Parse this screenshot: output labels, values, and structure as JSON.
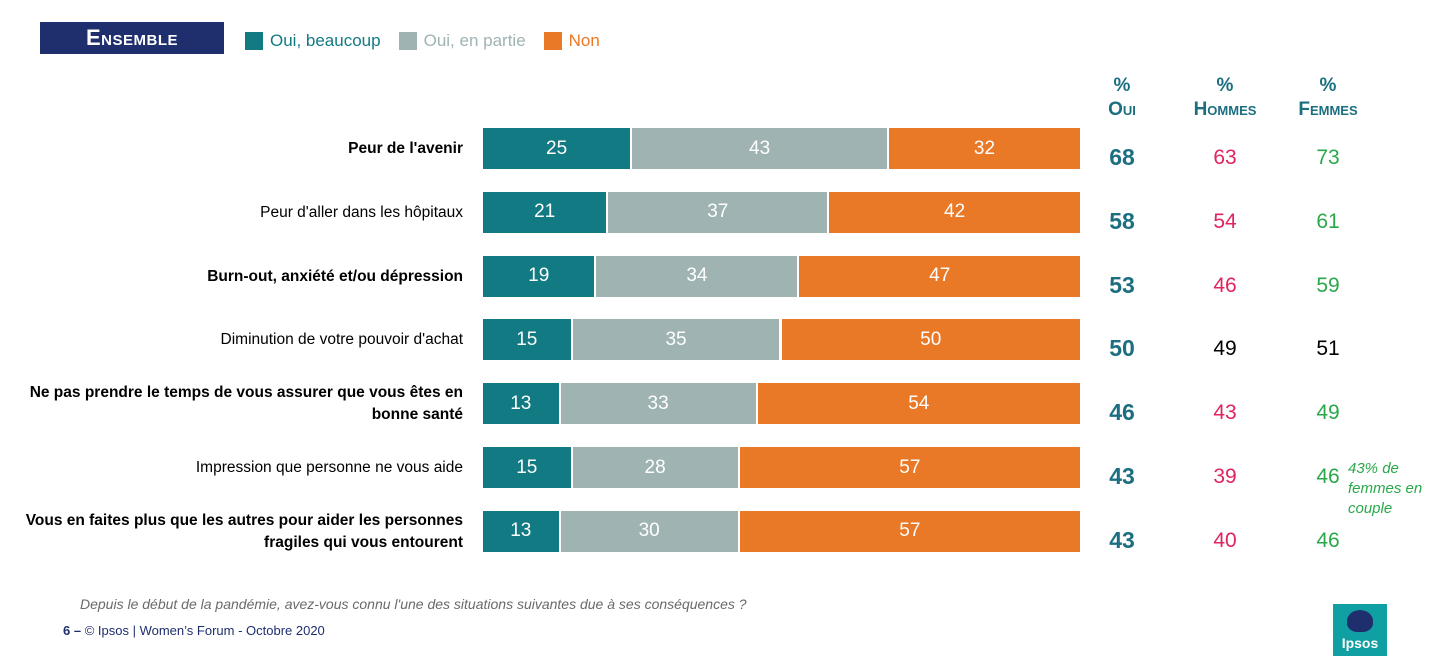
{
  "badge": "Ensemble",
  "legend": [
    {
      "label": "Oui, beaucoup",
      "color": "#127a83"
    },
    {
      "label": "Oui, en partie",
      "color": "#9fb3b3"
    },
    {
      "label": "Non",
      "color": "#e97926"
    }
  ],
  "columns": {
    "oui": {
      "pct": "%",
      "label": "Oui"
    },
    "hommes": {
      "pct": "%",
      "label": "Hommes"
    },
    "femmes": {
      "pct": "%",
      "label": "Femmes"
    }
  },
  "chart_data": {
    "type": "bar",
    "orientation": "horizontal",
    "stacked": true,
    "categories": [
      "Peur de l'avenir",
      "Peur d'aller dans les hôpitaux",
      "Burn-out, anxiété et/ou dépression",
      "Diminution de votre pouvoir d'achat",
      "Ne pas prendre le temps de vous assurer que vous êtes en bonne santé",
      "Impression que personne ne vous aide",
      "Vous en faites plus que les autres pour aider les personnes fragiles qui vous entourent"
    ],
    "bold_categories": [
      true,
      false,
      true,
      false,
      true,
      false,
      true
    ],
    "series": [
      {
        "name": "Oui, beaucoup",
        "color": "#127a83",
        "values": [
          25,
          21,
          19,
          15,
          13,
          15,
          13
        ]
      },
      {
        "name": "Oui, en partie",
        "color": "#9fb3b3",
        "values": [
          43,
          37,
          34,
          35,
          33,
          28,
          30
        ]
      },
      {
        "name": "Non",
        "color": "#e97926",
        "values": [
          32,
          42,
          47,
          50,
          54,
          57,
          57
        ]
      }
    ],
    "xlim": [
      0,
      100
    ],
    "pct_oui": [
      68,
      58,
      53,
      50,
      46,
      43,
      43
    ],
    "pct_hommes": [
      63,
      54,
      46,
      49,
      43,
      39,
      40
    ],
    "pct_femmes": [
      73,
      61,
      59,
      51,
      49,
      46,
      46
    ],
    "hommes_colors": [
      "#e0245e",
      "#e0245e",
      "#e0245e",
      "#000000",
      "#e0245e",
      "#e0245e",
      "#e0245e"
    ],
    "femmes_colors": [
      "#2aa84a",
      "#2aa84a",
      "#2aa84a",
      "#000000",
      "#2aa84a",
      "#2aa84a",
      "#2aa84a"
    ]
  },
  "note": "43% de femmes en couple",
  "question": "Depuis le début de la pandémie, avez-vous connu l'une des situations suivantes due à ses conséquences ?",
  "footer": {
    "page": "6",
    "dash": "–",
    "text": "© Ipsos | Women’s Forum - Octobre 2020"
  },
  "logo": "Ipsos"
}
